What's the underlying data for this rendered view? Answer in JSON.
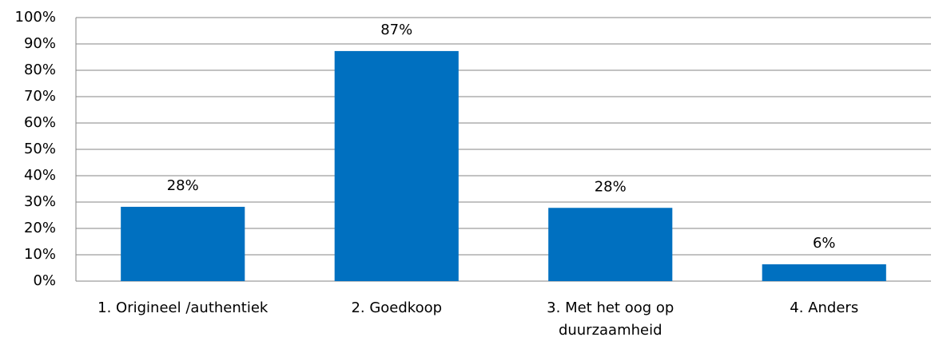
{
  "chart_data": {
    "type": "bar",
    "categories": [
      "1. Origineel /authentiek",
      "2. Goedkoop",
      "3. Met het oog op duurzaamheid",
      "4. Anders"
    ],
    "values": [
      28.2,
      87.3,
      27.8,
      6.4
    ],
    "value_labels": [
      "28%",
      "87%",
      "28%",
      "6%"
    ],
    "color": "#0070c0",
    "ylim": [
      0,
      100
    ],
    "yticks": [
      {
        "value": 0,
        "label": "0%"
      },
      {
        "value": 10,
        "label": "10%"
      },
      {
        "value": 20,
        "label": "20%"
      },
      {
        "value": 30,
        "label": "30%"
      },
      {
        "value": 40,
        "label": "40%"
      },
      {
        "value": 50,
        "label": "50%"
      },
      {
        "value": 60,
        "label": "60%"
      },
      {
        "value": 70,
        "label": "70%"
      },
      {
        "value": 80,
        "label": "80%"
      },
      {
        "value": 90,
        "label": "90%"
      },
      {
        "value": 100,
        "label": "100%"
      }
    ],
    "grid": true
  }
}
